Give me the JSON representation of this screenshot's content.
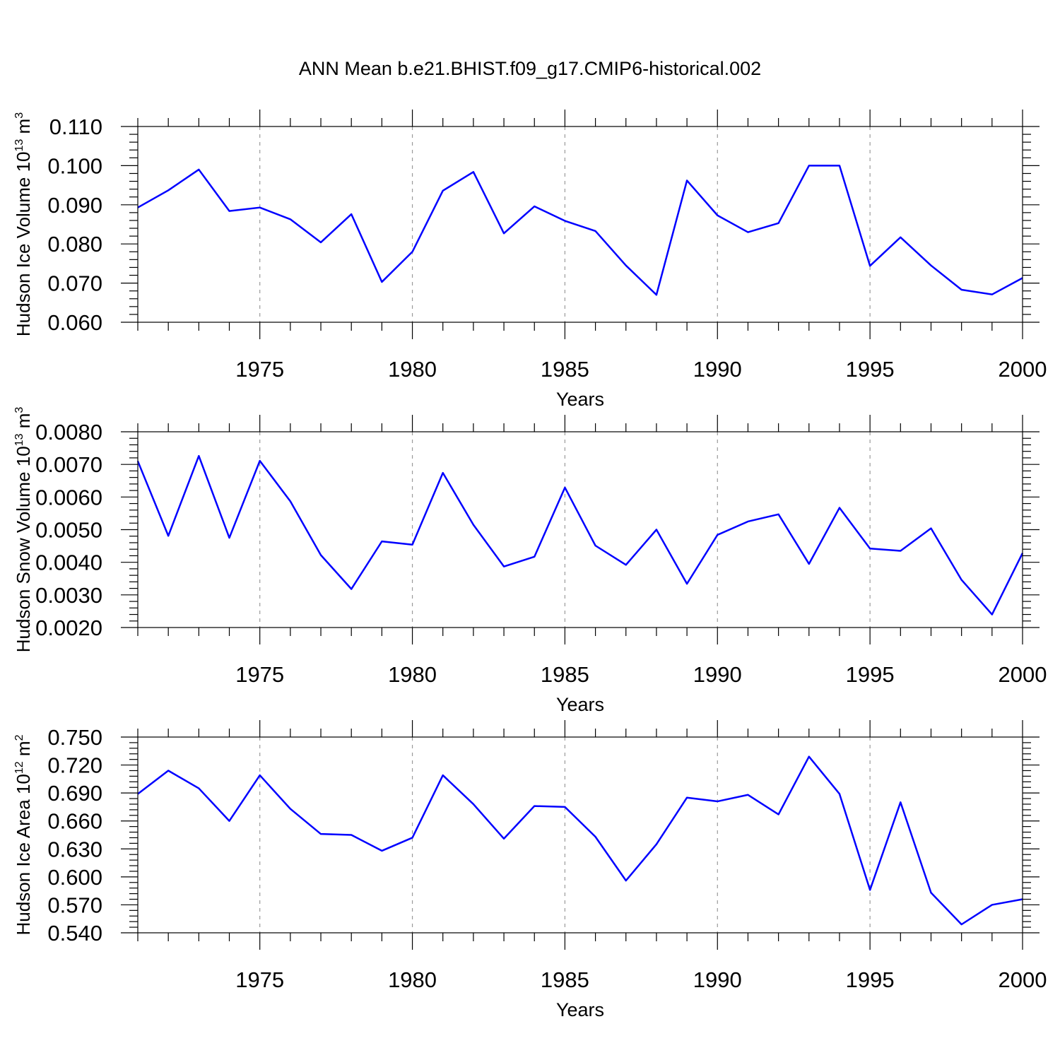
{
  "title": "ANN Mean b.e21.BHIST.f09_g17.CMIP6-historical.002",
  "chart_data": [
    {
      "type": "line",
      "title": "",
      "ylabel_main": "Hudson Ice Volume 10",
      "ylabel_exp": "13",
      "ylabel_unit": " m",
      "ylabel_unit_exp": "3",
      "xlabel": "Years",
      "xlim": [
        1971,
        2000
      ],
      "ylim": [
        0.06,
        0.11
      ],
      "x_major_ticks": [
        1975,
        1980,
        1985,
        1990,
        1995,
        2000
      ],
      "y_major_ticks": [
        0.06,
        0.07,
        0.08,
        0.09,
        0.1,
        0.11
      ],
      "y_tick_labels": [
        "0.060",
        "0.070",
        "0.080",
        "0.090",
        "0.100",
        "0.110"
      ],
      "color": "#0000ff",
      "x": [
        1971,
        1972,
        1973,
        1974,
        1975,
        1976,
        1977,
        1978,
        1979,
        1980,
        1981,
        1982,
        1983,
        1984,
        1985,
        1986,
        1987,
        1988,
        1989,
        1990,
        1991,
        1992,
        1993,
        1994,
        1995,
        1996,
        1997,
        1998,
        1999,
        2000
      ],
      "values": [
        0.0893,
        0.0937,
        0.099,
        0.0884,
        0.0893,
        0.0863,
        0.0804,
        0.0876,
        0.0703,
        0.078,
        0.0936,
        0.0984,
        0.0827,
        0.0896,
        0.0859,
        0.0833,
        0.0745,
        0.067,
        0.0962,
        0.0873,
        0.083,
        0.0853,
        0.1,
        0.1,
        0.0744,
        0.0817,
        0.0745,
        0.0683,
        0.0671,
        0.0713
      ]
    },
    {
      "type": "line",
      "title": "",
      "ylabel_main": "Hudson Snow Volume 10",
      "ylabel_exp": "13",
      "ylabel_unit": " m",
      "ylabel_unit_exp": "3",
      "xlabel": "Years",
      "xlim": [
        1971,
        2000
      ],
      "ylim": [
        0.002,
        0.008
      ],
      "x_major_ticks": [
        1975,
        1980,
        1985,
        1990,
        1995,
        2000
      ],
      "y_major_ticks": [
        0.002,
        0.003,
        0.004,
        0.005,
        0.006,
        0.007,
        0.008
      ],
      "y_tick_labels": [
        "0.0020",
        "0.0030",
        "0.0040",
        "0.0050",
        "0.0060",
        "0.0070",
        "0.0080"
      ],
      "color": "#0000ff",
      "x": [
        1971,
        1972,
        1973,
        1974,
        1975,
        1976,
        1977,
        1978,
        1979,
        1980,
        1981,
        1982,
        1983,
        1984,
        1985,
        1986,
        1987,
        1988,
        1989,
        1990,
        1991,
        1992,
        1993,
        1994,
        1995,
        1996,
        1997,
        1998,
        1999,
        2000
      ],
      "values": [
        0.0071,
        0.00481,
        0.00726,
        0.00475,
        0.00711,
        0.00587,
        0.00422,
        0.00318,
        0.00464,
        0.00454,
        0.00674,
        0.00515,
        0.00387,
        0.00417,
        0.00629,
        0.00451,
        0.00392,
        0.005,
        0.00334,
        0.00484,
        0.00525,
        0.00547,
        0.00395,
        0.00567,
        0.00442,
        0.00435,
        0.00504,
        0.00346,
        0.0024,
        0.00428
      ]
    },
    {
      "type": "line",
      "title": "",
      "ylabel_main": "Hudson Ice Area 10",
      "ylabel_exp": "12",
      "ylabel_unit": " m",
      "ylabel_unit_exp": "2",
      "xlabel": "Years",
      "xlim": [
        1971,
        2000
      ],
      "ylim": [
        0.54,
        0.75
      ],
      "x_major_ticks": [
        1975,
        1980,
        1985,
        1990,
        1995,
        2000
      ],
      "y_major_ticks": [
        0.54,
        0.57,
        0.6,
        0.63,
        0.66,
        0.69,
        0.72,
        0.75
      ],
      "y_tick_labels": [
        "0.540",
        "0.570",
        "0.600",
        "0.630",
        "0.660",
        "0.690",
        "0.720",
        "0.750"
      ],
      "color": "#0000ff",
      "x": [
        1971,
        1972,
        1973,
        1974,
        1975,
        1976,
        1977,
        1978,
        1979,
        1980,
        1981,
        1982,
        1983,
        1984,
        1985,
        1986,
        1987,
        1988,
        1989,
        1990,
        1991,
        1992,
        1993,
        1994,
        1995,
        1996,
        1997,
        1998,
        1999,
        2000
      ],
      "values": [
        0.689,
        0.714,
        0.695,
        0.66,
        0.709,
        0.673,
        0.646,
        0.645,
        0.628,
        0.642,
        0.709,
        0.678,
        0.641,
        0.676,
        0.675,
        0.643,
        0.596,
        0.635,
        0.685,
        0.681,
        0.688,
        0.667,
        0.729,
        0.689,
        0.586,
        0.68,
        0.583,
        0.549,
        0.57,
        0.576
      ]
    }
  ]
}
